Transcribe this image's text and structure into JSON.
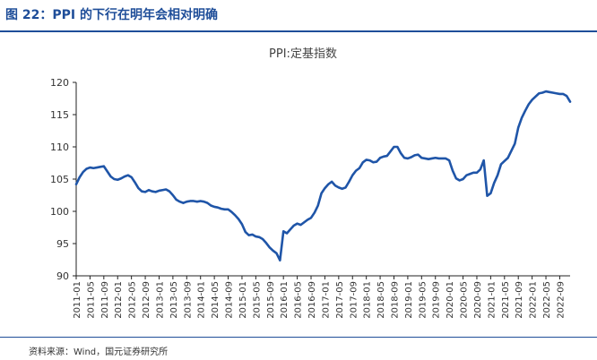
{
  "figure_title": "图 22：PPI 的下行在明年会相对明确",
  "source": "资料来源：Wind，国元证券研究所",
  "colors": {
    "accent": "#1f4e99",
    "line": "#1f55a8"
  },
  "chart_data": {
    "type": "line",
    "title": "PPI:定基指数",
    "xlabel": "",
    "ylabel": "",
    "ylim": [
      90,
      120
    ],
    "yticks": [
      90,
      95,
      100,
      105,
      110,
      115,
      120
    ],
    "grid": false,
    "legend": "none",
    "x_start": "2011-01",
    "tick_labels": [
      "2011-01",
      "2011-05",
      "2011-09",
      "2012-01",
      "2012-05",
      "2012-09",
      "2013-01",
      "2013-05",
      "2013-09",
      "2014-01",
      "2014-05",
      "2014-09",
      "2015-01",
      "2015-05",
      "2015-09",
      "2016-01",
      "2016-05",
      "2016-09",
      "2017-01",
      "2017-05",
      "2017-09",
      "2018-01",
      "2018-05",
      "2018-09",
      "2019-01",
      "2019-05",
      "2019-09",
      "2020-01",
      "2020-05",
      "2020-09",
      "2021-01",
      "2021-05",
      "2021-09",
      "2022-01",
      "2022-05",
      "2022-09"
    ],
    "series": [
      {
        "name": "",
        "values": [
          104.2,
          105.3,
          106.1,
          106.6,
          106.8,
          106.7,
          106.8,
          106.9,
          107.0,
          106.2,
          105.4,
          105.0,
          104.9,
          105.1,
          105.4,
          105.6,
          105.3,
          104.5,
          103.6,
          103.1,
          103.0,
          103.3,
          103.1,
          103.0,
          103.2,
          103.3,
          103.4,
          103.1,
          102.5,
          101.8,
          101.5,
          101.3,
          101.5,
          101.6,
          101.6,
          101.5,
          101.6,
          101.5,
          101.3,
          100.9,
          100.7,
          100.6,
          100.4,
          100.3,
          100.3,
          99.9,
          99.4,
          98.8,
          98.0,
          96.8,
          96.3,
          96.4,
          96.1,
          96.0,
          95.7,
          95.1,
          94.4,
          93.9,
          93.5,
          92.4,
          96.9,
          96.6,
          97.2,
          97.8,
          98.1,
          97.9,
          98.3,
          98.7,
          99.0,
          99.8,
          100.9,
          102.8,
          103.6,
          104.2,
          104.6,
          104.0,
          103.7,
          103.5,
          103.7,
          104.6,
          105.6,
          106.3,
          106.7,
          107.6,
          108.0,
          107.9,
          107.6,
          107.7,
          108.3,
          108.5,
          108.6,
          109.3,
          110.0,
          110.0,
          109.0,
          108.3,
          108.2,
          108.4,
          108.7,
          108.8,
          108.3,
          108.2,
          108.1,
          108.2,
          108.3,
          108.2,
          108.2,
          108.2,
          107.9,
          106.3,
          105.1,
          104.8,
          105.0,
          105.6,
          105.8,
          106.0,
          106.0,
          106.5,
          107.9,
          102.4,
          102.8,
          104.4,
          105.6,
          107.3,
          107.8,
          108.3,
          109.4,
          110.5,
          113.0,
          114.5,
          115.6,
          116.6,
          117.3,
          117.8,
          118.3,
          118.4,
          118.6,
          118.5,
          118.4,
          118.3,
          118.2,
          118.2,
          117.9,
          117.0
        ]
      }
    ]
  }
}
